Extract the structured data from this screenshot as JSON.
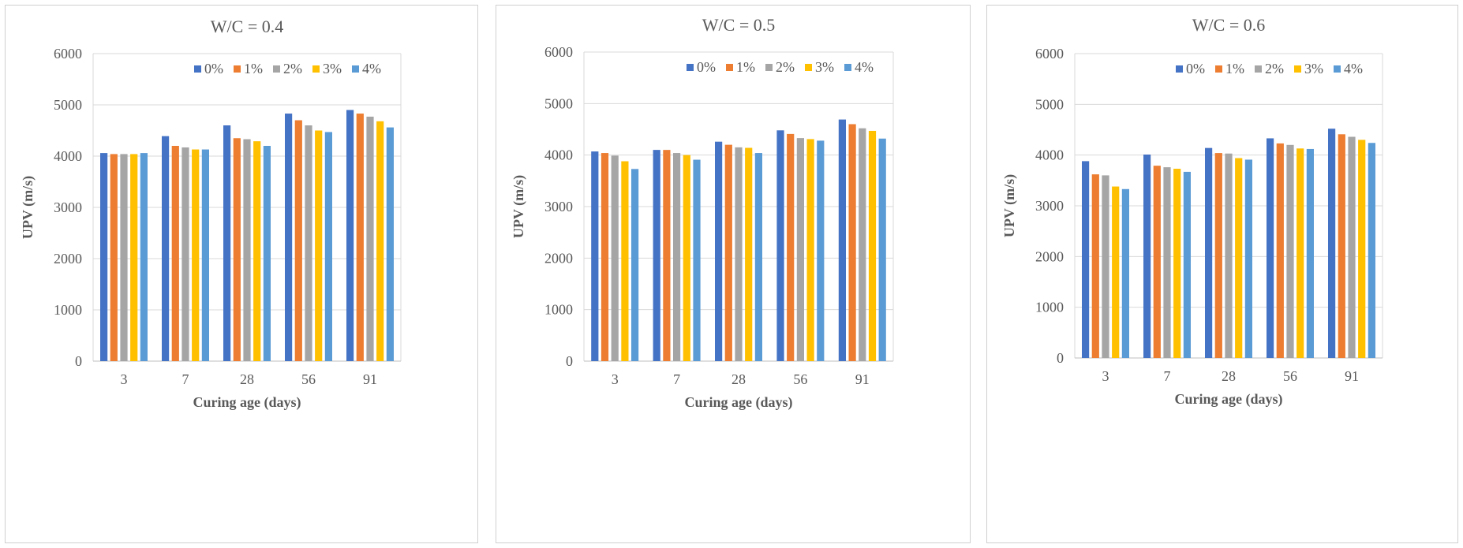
{
  "chart_data": [
    {
      "type": "bar",
      "title": "W/C = 0.4",
      "xlabel": "Curing age (days)",
      "ylabel": "UPV (m/s)",
      "ylim": [
        0,
        6000
      ],
      "yticks": [
        "0",
        "1000",
        "2000",
        "3000",
        "4000",
        "5000",
        "6000"
      ],
      "categories": [
        "3",
        "7",
        "28",
        "56",
        "91"
      ],
      "legend_position": "top-right",
      "series": [
        {
          "name": "0%",
          "color": "#4472C4",
          "values": [
            4060,
            4390,
            4600,
            4830,
            4900
          ]
        },
        {
          "name": "1%",
          "color": "#ED7D31",
          "values": [
            4040,
            4200,
            4350,
            4700,
            4830
          ]
        },
        {
          "name": "2%",
          "color": "#A5A5A5",
          "values": [
            4040,
            4170,
            4330,
            4600,
            4770
          ]
        },
        {
          "name": "3%",
          "color": "#FFC000",
          "values": [
            4040,
            4130,
            4290,
            4500,
            4680
          ]
        },
        {
          "name": "4%",
          "color": "#5B9BD5",
          "values": [
            4060,
            4130,
            4200,
            4470,
            4560
          ]
        }
      ]
    },
    {
      "type": "bar",
      "title": "W/C = 0.5",
      "xlabel": "Curing age (days)",
      "ylabel": "UPV (m/s)",
      "ylim": [
        0,
        6000
      ],
      "yticks": [
        "0",
        "1000",
        "2000",
        "3000",
        "4000",
        "5000",
        "6000"
      ],
      "categories": [
        "3",
        "7",
        "28",
        "56",
        "91"
      ],
      "legend_position": "top-right",
      "series": [
        {
          "name": "0%",
          "color": "#4472C4",
          "values": [
            4070,
            4100,
            4260,
            4480,
            4690
          ]
        },
        {
          "name": "1%",
          "color": "#ED7D31",
          "values": [
            4040,
            4100,
            4200,
            4410,
            4600
          ]
        },
        {
          "name": "2%",
          "color": "#A5A5A5",
          "values": [
            3990,
            4040,
            4150,
            4330,
            4520
          ]
        },
        {
          "name": "3%",
          "color": "#FFC000",
          "values": [
            3880,
            4000,
            4140,
            4310,
            4470
          ]
        },
        {
          "name": "4%",
          "color": "#5B9BD5",
          "values": [
            3730,
            3910,
            4040,
            4280,
            4320
          ]
        }
      ]
    },
    {
      "type": "bar",
      "title": "W/C = 0.6",
      "xlabel": "Curing age (days)",
      "ylabel": "UPV (m/s)",
      "ylim": [
        0,
        6000
      ],
      "yticks": [
        "0",
        "1000",
        "2000",
        "3000",
        "4000",
        "5000",
        "6000"
      ],
      "categories": [
        "3",
        "7",
        "28",
        "56",
        "91"
      ],
      "legend_position": "top-right",
      "series": [
        {
          "name": "0%",
          "color": "#4472C4",
          "values": [
            3880,
            4010,
            4140,
            4330,
            4520
          ]
        },
        {
          "name": "1%",
          "color": "#ED7D31",
          "values": [
            3620,
            3790,
            4040,
            4230,
            4410
          ]
        },
        {
          "name": "2%",
          "color": "#A5A5A5",
          "values": [
            3600,
            3760,
            4030,
            4200,
            4360
          ]
        },
        {
          "name": "3%",
          "color": "#FFC000",
          "values": [
            3380,
            3730,
            3940,
            4130,
            4300
          ]
        },
        {
          "name": "4%",
          "color": "#5B9BD5",
          "values": [
            3330,
            3670,
            3910,
            4120,
            4240
          ]
        }
      ]
    }
  ]
}
